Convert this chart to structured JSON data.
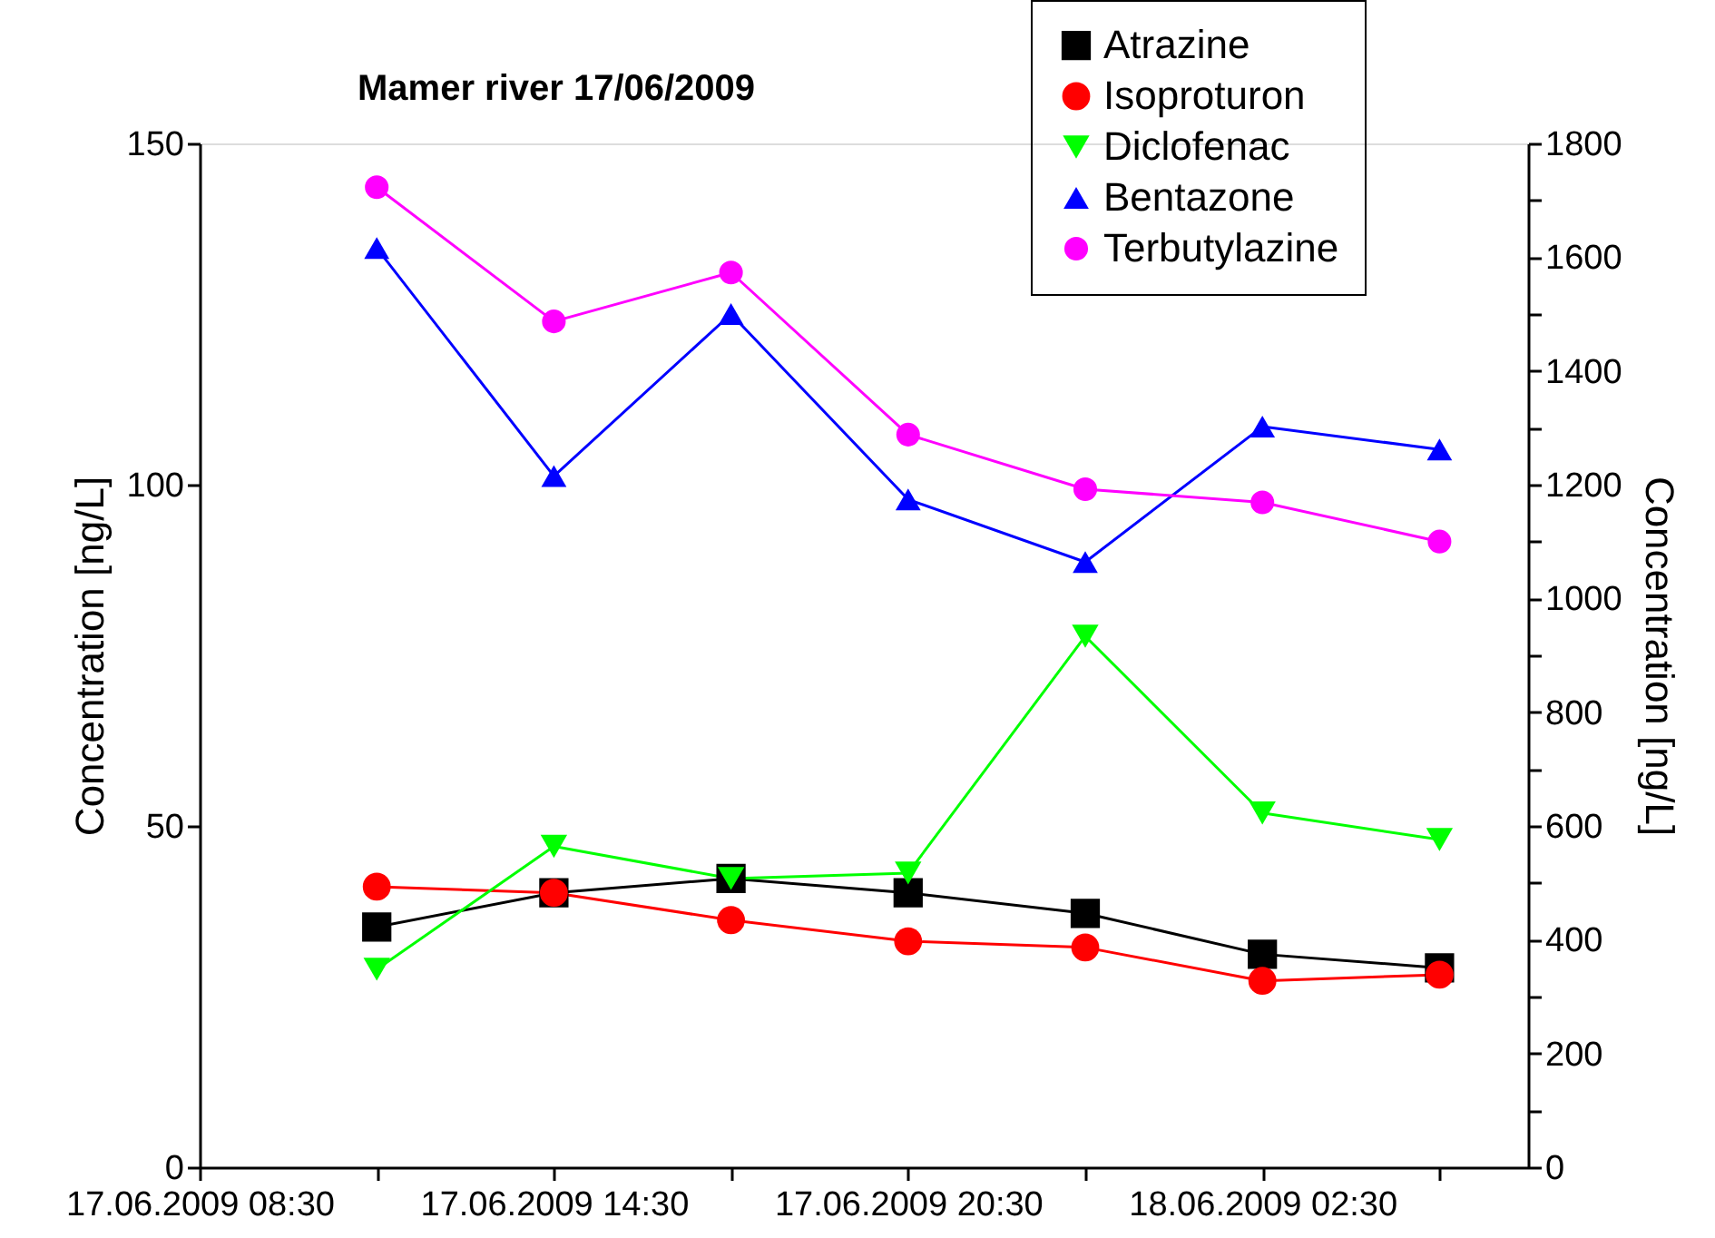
{
  "chart_data": {
    "type": "line",
    "title": "Mamer river 17/06/2009",
    "ylabel": "Concentration [ng/L]",
    "y2label": "Concentration [ng/L]",
    "x": [
      "2009-06-17T11:30",
      "2009-06-17T14:30",
      "2009-06-17T17:30",
      "2009-06-17T20:30",
      "2009-06-17T23:30",
      "2009-06-18T02:30",
      "2009-06-18T05:30"
    ],
    "xlim": [
      "2009-06-17T08:30",
      "2009-06-18T07:00"
    ],
    "xticks": [
      {
        "value": "2009-06-17T08:30",
        "label": "17.06.2009 08:30"
      },
      {
        "value": "2009-06-17T11:30",
        "label": null
      },
      {
        "value": "2009-06-17T14:30",
        "label": "17.06.2009 14:30"
      },
      {
        "value": "2009-06-17T17:30",
        "label": null
      },
      {
        "value": "2009-06-17T20:30",
        "label": "17.06.2009 20:30"
      },
      {
        "value": "2009-06-17T23:30",
        "label": null
      },
      {
        "value": "2009-06-18T02:30",
        "label": "18.06.2009 02:30"
      },
      {
        "value": "2009-06-18T05:30",
        "label": null
      }
    ],
    "ylim": [
      0,
      150
    ],
    "yticks": [
      0,
      50,
      100,
      150
    ],
    "y2lim": [
      0,
      1800
    ],
    "y2ticks": [
      0,
      {
        "value": 100,
        "label": null
      },
      200,
      {
        "value": 300,
        "label": null
      },
      400,
      {
        "value": 500,
        "label": null
      },
      600,
      {
        "value": 700,
        "label": null
      },
      800,
      {
        "value": 900,
        "label": null
      },
      1000,
      {
        "value": 1100,
        "label": null
      },
      1200,
      {
        "value": 1300,
        "label": null
      },
      1400,
      {
        "value": 1500,
        "label": null
      },
      1600,
      {
        "value": 1700,
        "label": null
      },
      1800
    ],
    "grid": false,
    "legend": "top right",
    "line_style": "solid",
    "series": [
      {
        "name": "Atrazine",
        "color": "#000000",
        "marker": "square",
        "values": [
          35.2,
          40.2,
          42.3,
          40.2,
          37.2,
          31.2,
          29.2
        ]
      },
      {
        "name": "Isoproturon",
        "color": "#ff0000",
        "marker": "circle",
        "values": [
          41.1,
          40.2,
          36.2,
          33.1,
          32.2,
          27.3,
          28.2
        ]
      },
      {
        "name": "Diclofenac",
        "color": "#00ff00",
        "marker": "triangle-down",
        "values": [
          29,
          47,
          42.3,
          43.1,
          77.8,
          51.9,
          48
        ]
      },
      {
        "name": "Bentazone",
        "color": "#0000ff",
        "marker": "triangle",
        "axis": "y2",
        "values": [
          1616,
          1215,
          1500,
          1174,
          1064,
          1302,
          1262
        ]
      },
      {
        "name": "Terbutylazine",
        "color": "#ff00ff",
        "marker": "circle",
        "axis": "y2",
        "values": [
          1723,
          1487,
          1573,
          1288,
          1192,
          1169,
          1100
        ]
      }
    ]
  }
}
